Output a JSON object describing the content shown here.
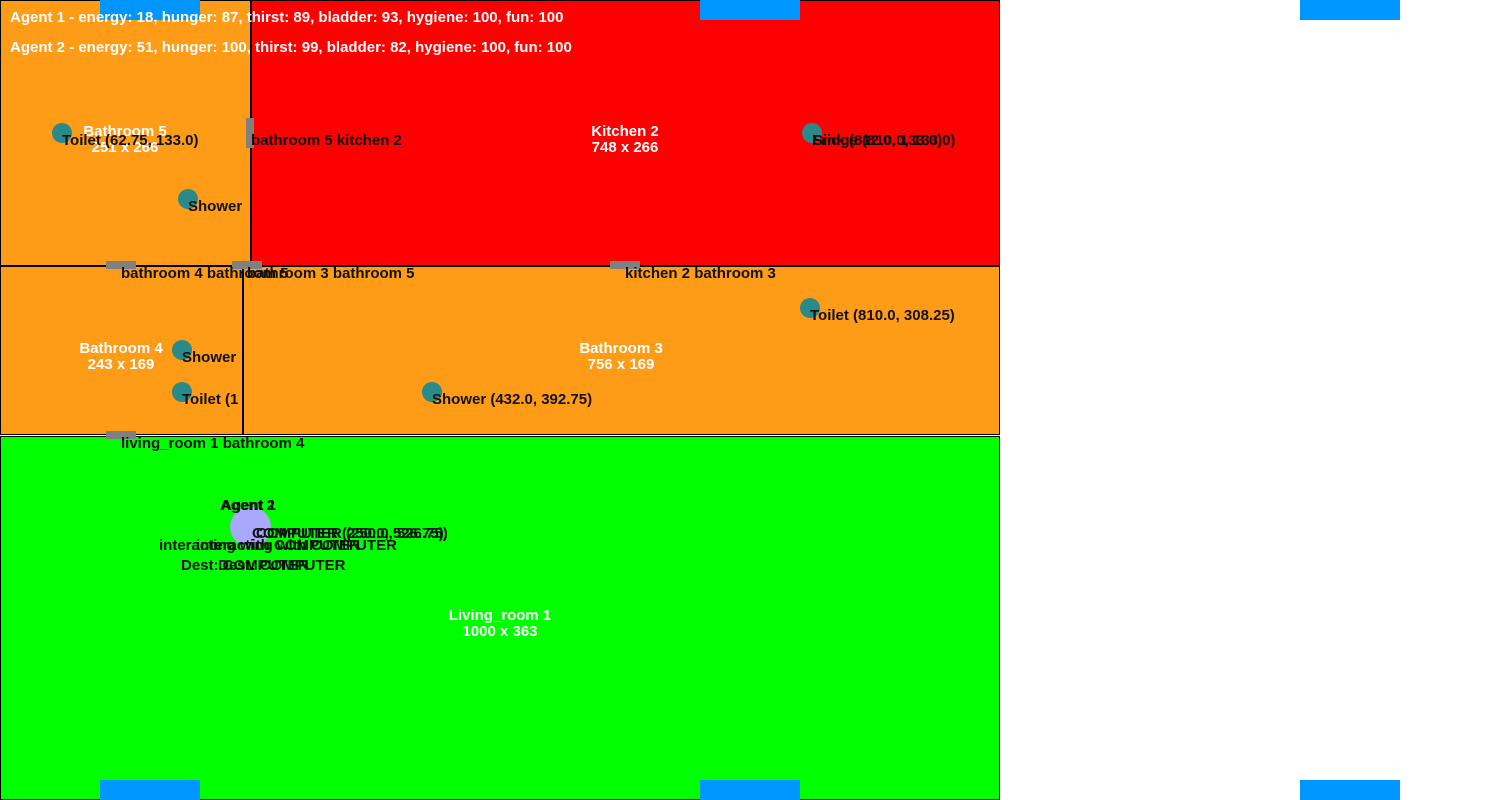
{
  "colors": {
    "kitchen": "#ff0000",
    "bathroom": "#ff9c17",
    "living_room": "#00ff00",
    "window": "#0096ff",
    "door": "#808080",
    "object": "#2a8a8a",
    "agent": "#a8a8ff"
  },
  "status": {
    "agent1": "Agent 1 - energy: 18, hunger: 87, thirst: 89, bladder: 93, hygiene: 100, fun: 100",
    "agent2": "Agent 2 - energy: 51, hunger: 100, thirst: 99, bladder: 82, hygiene: 100, fun: 100"
  },
  "rooms": {
    "bathroom5": {
      "name": "Bathroom 5",
      "size": "251 x 266"
    },
    "kitchen2": {
      "name": "Kitchen 2",
      "size": "748 x 266"
    },
    "bathroom4": {
      "name": "Bathroom 4",
      "size": "243 x 169"
    },
    "bathroom3": {
      "name": "Bathroom 3",
      "size": "756 x 169"
    },
    "living_room1": {
      "name": "Living_room 1",
      "size": "1000 x 363"
    }
  },
  "objects": {
    "toilet_b5": "Toilet (62.75, 133.0)",
    "shower_b5": "Shower",
    "sink_k2": "Sink (812.0, 133.0)",
    "fridge_k2": "Fridge (810.0, 133.0)",
    "toilet_b3": "Toilet (810.0, 308.25)",
    "shower_b4": "Shower",
    "toilet_b4": "Toilet (1",
    "shower_b3": "Shower (432.0, 392.75)"
  },
  "doors": {
    "b5_k2": "bathroom 5 kitchen 2",
    "b4_b5": "bathroom 4 bathroom 5",
    "b3_b5": "bathroom 3 bathroom 5",
    "k2_b3": "kitchen 2 bathroom 3",
    "lr1_b4": "living_room 1 bathroom 4"
  },
  "agents": {
    "agent1_name": "Agent 1",
    "agent2_name": "Agent 2",
    "a1_target": "COMPUTER (250.0, 526.75)",
    "a2_target": "COMPUTER (250.0, 526.75)",
    "a1_action": "interacting with",
    "a1_action_obj": "COMPUTER",
    "a2_action": "interacting with",
    "a2_action_obj": "COMPUTER",
    "a1_dest": "Dest: COMPUTER",
    "a2_dest": "Dest: COMPUTER"
  }
}
